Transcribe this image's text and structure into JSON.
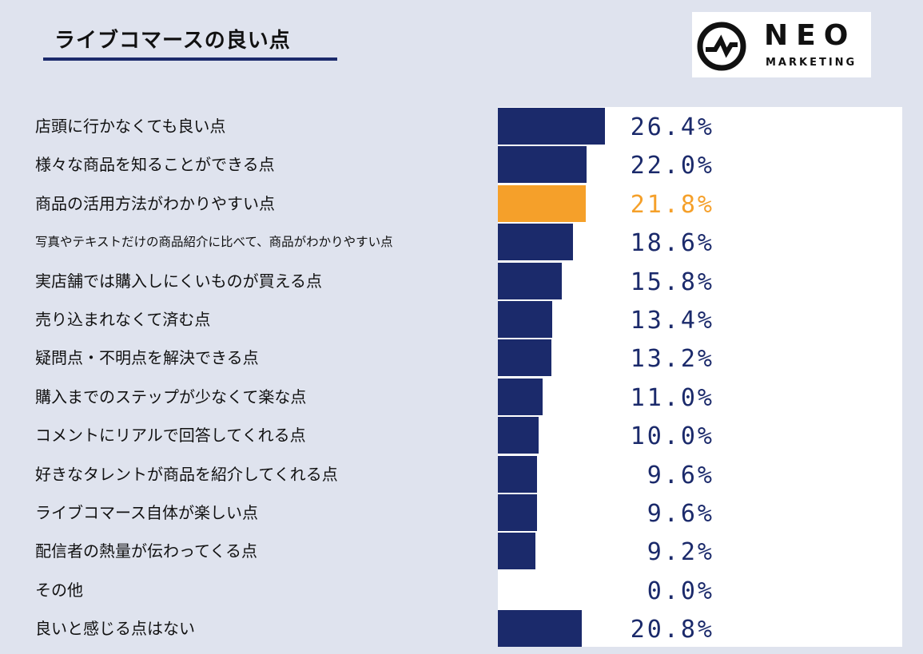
{
  "title": "ライブコマースの良い点",
  "logo": {
    "name": "NEO",
    "sub": "MARKETING",
    "icon": "neo-zigzag-circle-icon"
  },
  "colors": {
    "bar": "#1b2a6b",
    "highlight": "#f5a02a",
    "background": "#dfe3ee",
    "panel": "#ffffff"
  },
  "chart_data": {
    "type": "bar",
    "orientation": "horizontal",
    "title": "ライブコマースの良い点",
    "categories": [
      "店頭に行かなくても良い点",
      "様々な商品を知ることができる点",
      "商品の活用方法がわかりやすい点",
      "写真やテキストだけの商品紹介に比べて、商品がわかりやすい点",
      "実店舗では購入しにくいものが買える点",
      "売り込まれなくて済む点",
      "疑問点・不明点を解決できる点",
      "購入までのステップが少なくて楽な点",
      "コメントにリアルで回答してくれる点",
      "好きなタレントが商品を紹介してくれる点",
      "ライブコマース自体が楽しい点",
      "配信者の熱量が伝わってくる点",
      "その他",
      "良いと感じる点はない"
    ],
    "values": [
      26.4,
      22.0,
      21.8,
      18.6,
      15.8,
      13.4,
      13.2,
      11.0,
      10.0,
      9.6,
      9.6,
      9.2,
      0.0,
      20.8
    ],
    "value_labels": [
      "26.4%",
      "22.0%",
      "21.8%",
      "18.6%",
      "15.8%",
      "13.4%",
      "13.2%",
      "11.0%",
      "10.0%",
      "9.6%",
      "9.6%",
      "9.2%",
      "0.0%",
      "20.8%"
    ],
    "highlight_index": 2,
    "unit": "%",
    "xlim": [
      0,
      100
    ],
    "grid": false,
    "legend": "none"
  }
}
